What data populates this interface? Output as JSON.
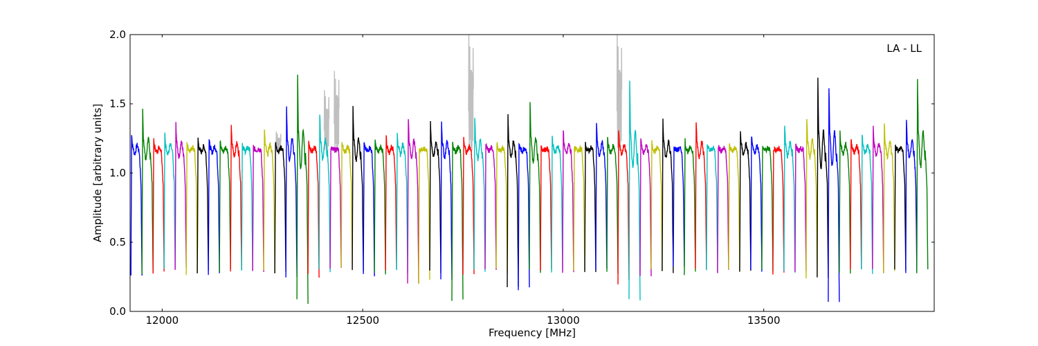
{
  "chart_data": {
    "type": "line",
    "title": "",
    "annotation": "LA - LL",
    "xlabel": "Frequency [MHz]",
    "ylabel": "Amplitude [arbitrary units]",
    "xlim": [
      11920,
      13925
    ],
    "ylim": [
      0.0,
      2.0
    ],
    "xticks": [
      12000,
      12500,
      13000,
      13500
    ],
    "yticks": [
      0.0,
      0.5,
      1.0,
      1.5,
      2.0
    ],
    "grid": false,
    "legend": "none",
    "raw_color": "#c0c0c0",
    "color_cycle": [
      "#0000ff",
      "#008000",
      "#ff0000",
      "#00bfbf",
      "#bf00bf",
      "#bfbf00",
      "#000000"
    ],
    "channel_width_mhz": 27.6,
    "channel_start_mhz": 11922,
    "channel_count": 72,
    "channel_peaks": [
      1.29,
      1.47,
      1.24,
      1.29,
      1.37,
      1.23,
      1.25,
      1.25,
      1.23,
      1.34,
      1.22,
      1.19,
      1.31,
      1.22,
      1.48,
      1.72,
      1.22,
      1.44,
      1.18,
      1.23,
      1.49,
      1.22,
      1.24,
      1.27,
      1.31,
      1.42,
      1.17,
      1.39,
      1.39,
      1.23,
      1.25,
      1.43,
      1.21,
      1.22,
      1.43,
      1.22,
      1.52,
      1.18,
      1.27,
      1.32,
      1.18,
      1.21,
      1.37,
      1.26,
      1.3,
      1.68,
      1.27,
      1.22,
      1.39,
      1.19,
      1.24,
      1.39,
      1.21,
      1.2,
      1.21,
      1.31,
      1.27,
      1.19,
      1.18,
      1.37,
      1.2,
      1.42,
      1.7,
      1.65,
      1.3,
      1.25,
      1.27,
      1.33,
      1.38,
      1.22,
      1.41,
      1.69
    ],
    "channel_minima": [
      0.26,
      0.28,
      0.29,
      0.3,
      0.3,
      0.28,
      0.29,
      0.28,
      0.29,
      0.3,
      0.29,
      0.3,
      0.29,
      0.27,
      0.24,
      0.07,
      0.26,
      0.29,
      0.3,
      0.32,
      0.29,
      0.27,
      0.28,
      0.29,
      0.28,
      0.21,
      0.21,
      0.29,
      0.23,
      0.09,
      0.28,
      0.29,
      0.29,
      0.29,
      0.17,
      0.17,
      0.29,
      0.29,
      0.29,
      0.29,
      0.3,
      0.3,
      0.29,
      0.29,
      0.21,
      0.07,
      0.26,
      0.29,
      0.29,
      0.31,
      0.28,
      0.29,
      0.3,
      0.29,
      0.29,
      0.28,
      0.29,
      0.29,
      0.28,
      0.29,
      0.29,
      0.24,
      0.23,
      0.08,
      0.29,
      0.3,
      0.29,
      0.29,
      0.29,
      0.29,
      0.29,
      0.29
    ],
    "raw_spikes": [
      {
        "x": 12410,
        "peak": 1.6
      },
      {
        "x": 12435,
        "peak": 1.74
      },
      {
        "x": 12770,
        "peak": 2.0
      },
      {
        "x": 13140,
        "peak": 2.0
      },
      {
        "x": 12290,
        "peak": 1.3
      }
    ]
  }
}
